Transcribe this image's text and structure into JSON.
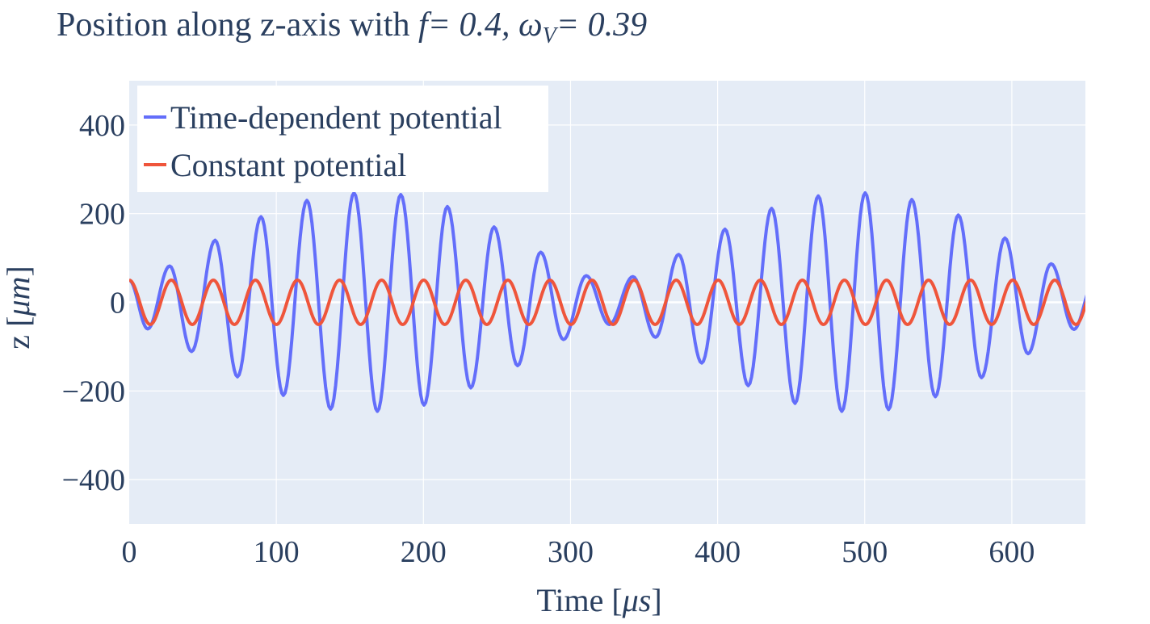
{
  "chart_data": {
    "type": "line",
    "title": {
      "prefix": "Position along z-axis with ",
      "f_symbol": "f",
      "f_value": "= 0.4,",
      "omega_symbol": "ω",
      "omega_sub": "V",
      "omega_value": "= 0.39"
    },
    "xlabel": {
      "text": "Time",
      "unit": "μs"
    },
    "ylabel": {
      "text": "z",
      "unit": "μm"
    },
    "xlim": [
      0,
      650
    ],
    "ylim": [
      -500,
      500
    ],
    "xticks": [
      0,
      100,
      200,
      300,
      400,
      500,
      600
    ],
    "yticks": [
      -400,
      -200,
      0,
      200,
      400
    ],
    "ytick_labels": [
      "−400",
      "−200",
      "0",
      "200",
      "400"
    ],
    "grid": true,
    "legend": {
      "placement": "top-left"
    },
    "series": [
      {
        "name": "Time-dependent potential",
        "color": "#636efa",
        "model": "beat",
        "peaks": [
          {
            "t": 0.0,
            "z": 50
          },
          {
            "t": 12.6,
            "z": -60
          },
          {
            "t": 27.5,
            "z": 82
          },
          {
            "t": 42.4,
            "z": -111
          },
          {
            "t": 58.4,
            "z": 140
          },
          {
            "t": 73.6,
            "z": -168
          },
          {
            "t": 89.6,
            "z": 193
          },
          {
            "t": 104.8,
            "z": -210
          },
          {
            "t": 120.8,
            "z": 230
          },
          {
            "t": 136.9,
            "z": -241
          },
          {
            "t": 152.8,
            "z": 247
          },
          {
            "t": 168.7,
            "z": -246
          },
          {
            "t": 184.6,
            "z": 243
          },
          {
            "t": 200.4,
            "z": -232
          },
          {
            "t": 216.3,
            "z": 216
          },
          {
            "t": 232.2,
            "z": -193
          },
          {
            "t": 248.0,
            "z": 170
          },
          {
            "t": 264.0,
            "z": -143
          },
          {
            "t": 279.7,
            "z": 113
          },
          {
            "t": 295.2,
            "z": -84
          },
          {
            "t": 310.7,
            "z": 60
          },
          {
            "t": 326.4,
            "z": -50
          },
          {
            "t": 342.4,
            "z": 58
          },
          {
            "t": 357.8,
            "z": -79
          },
          {
            "t": 373.5,
            "z": 108
          },
          {
            "t": 389.2,
            "z": -137
          },
          {
            "t": 405.0,
            "z": 165
          },
          {
            "t": 420.8,
            "z": -188
          },
          {
            "t": 436.7,
            "z": 212
          },
          {
            "t": 452.6,
            "z": -228
          },
          {
            "t": 468.4,
            "z": 240
          },
          {
            "t": 484.4,
            "z": -246
          },
          {
            "t": 500.3,
            "z": 247
          },
          {
            "t": 516.2,
            "z": -242
          },
          {
            "t": 532.0,
            "z": 232
          },
          {
            "t": 548.0,
            "z": -213
          },
          {
            "t": 563.6,
            "z": 197
          },
          {
            "t": 579.4,
            "z": -170
          },
          {
            "t": 595.3,
            "z": 145
          },
          {
            "t": 611.0,
            "z": -116
          },
          {
            "t": 626.7,
            "z": 87
          },
          {
            "t": 642.2,
            "z": -61
          },
          {
            "t": 656.0,
            "z": 48
          }
        ]
      },
      {
        "name": "Constant potential",
        "color": "#ef553b",
        "model": "cosine",
        "amplitude": 50,
        "period": 28.6,
        "phase": 0
      }
    ]
  }
}
